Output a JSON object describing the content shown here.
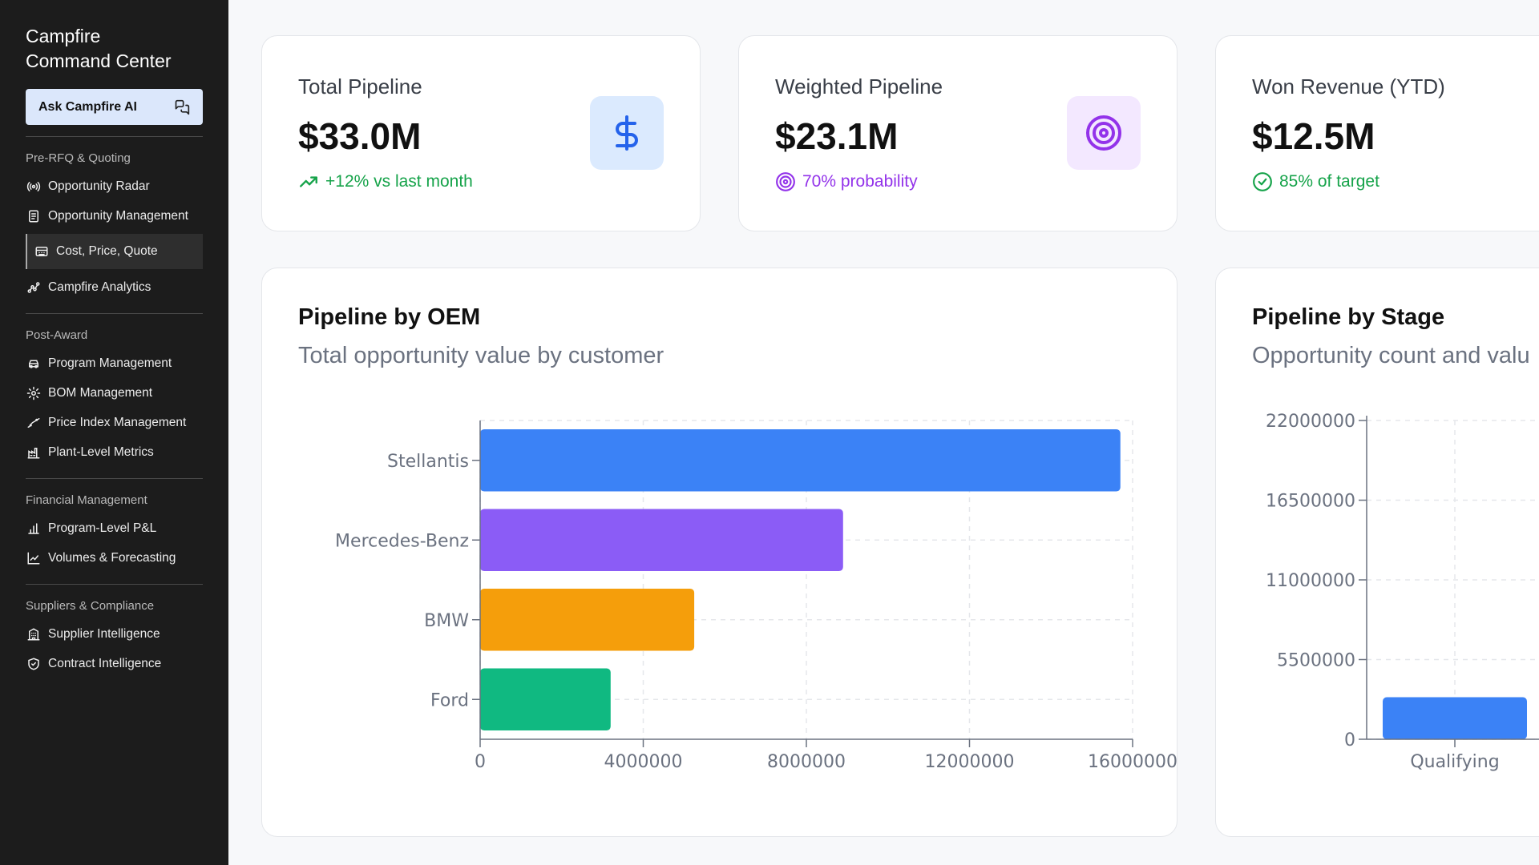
{
  "sidebar": {
    "brand_line1": "Campfire",
    "brand_line2": "Command Center",
    "ask_label": "Ask Campfire AI",
    "sections": [
      {
        "label": "Pre-RFQ & Quoting",
        "items": [
          {
            "label": "Opportunity Radar",
            "icon": "radar-icon"
          },
          {
            "label": "Opportunity Management",
            "icon": "document-icon"
          },
          {
            "label": "Cost, Price, Quote",
            "icon": "calculator-icon",
            "active": true
          },
          {
            "label": "Campfire Analytics",
            "icon": "analytics-icon"
          }
        ]
      },
      {
        "label": "Post-Award",
        "items": [
          {
            "label": "Program Management",
            "icon": "car-icon"
          },
          {
            "label": "BOM Management",
            "icon": "gear-icon"
          },
          {
            "label": "Price Index Management",
            "icon": "trend-icon"
          },
          {
            "label": "Plant-Level Metrics",
            "icon": "factory-icon"
          }
        ]
      },
      {
        "label": "Financial Management",
        "items": [
          {
            "label": "Program-Level P&L",
            "icon": "bar-chart-icon"
          },
          {
            "label": "Volumes & Forecasting",
            "icon": "line-chart-icon"
          }
        ]
      },
      {
        "label": "Suppliers & Compliance",
        "items": [
          {
            "label": "Supplier Intelligence",
            "icon": "building-icon"
          },
          {
            "label": "Contract Intelligence",
            "icon": "shield-icon"
          }
        ]
      }
    ]
  },
  "stats": {
    "total": {
      "title": "Total Pipeline",
      "value": "$33.0M",
      "sub": "+12% vs last month",
      "icon": "dollar-icon",
      "color": "#16a34a",
      "icon_bg": "#dbeafe",
      "icon_color": "#2563eb"
    },
    "weighted": {
      "title": "Weighted Pipeline",
      "value": "$23.1M",
      "sub": "70% probability",
      "icon": "target-icon",
      "color": "#9333ea",
      "icon_bg": "#f3e8ff",
      "icon_color": "#9333ea"
    },
    "won": {
      "title": "Won Revenue (YTD)",
      "value": "$12.5M",
      "sub": "85% of target",
      "icon": "check-circle-icon",
      "color": "#16a34a"
    }
  },
  "oem_panel": {
    "title": "Pipeline by OEM",
    "subtitle": "Total opportunity value by customer"
  },
  "stage_panel": {
    "title": "Pipeline by Stage",
    "subtitle": "Opportunity count and valu"
  },
  "chart_data": [
    {
      "type": "bar",
      "orientation": "horizontal",
      "categories": [
        "Stellantis",
        "Mercedes-Benz",
        "BMW",
        "Ford"
      ],
      "values": [
        15700000,
        8900000,
        5250000,
        3200000
      ],
      "colors": [
        "#3b82f6",
        "#8b5cf6",
        "#f59e0b",
        "#10b981"
      ],
      "xlim": [
        0,
        16000000
      ],
      "xticks": [
        "0",
        "4000000",
        "8000000",
        "12000000",
        "16000000"
      ],
      "grid": true
    },
    {
      "type": "bar",
      "categories": [
        "Qualifying"
      ],
      "values": [
        2900000
      ],
      "colors": [
        "#3b82f6"
      ],
      "ylim": [
        0,
        22000000
      ],
      "yticks": [
        "0",
        "5500000",
        "11000000",
        "16500000",
        "22000000"
      ],
      "grid": true
    }
  ]
}
